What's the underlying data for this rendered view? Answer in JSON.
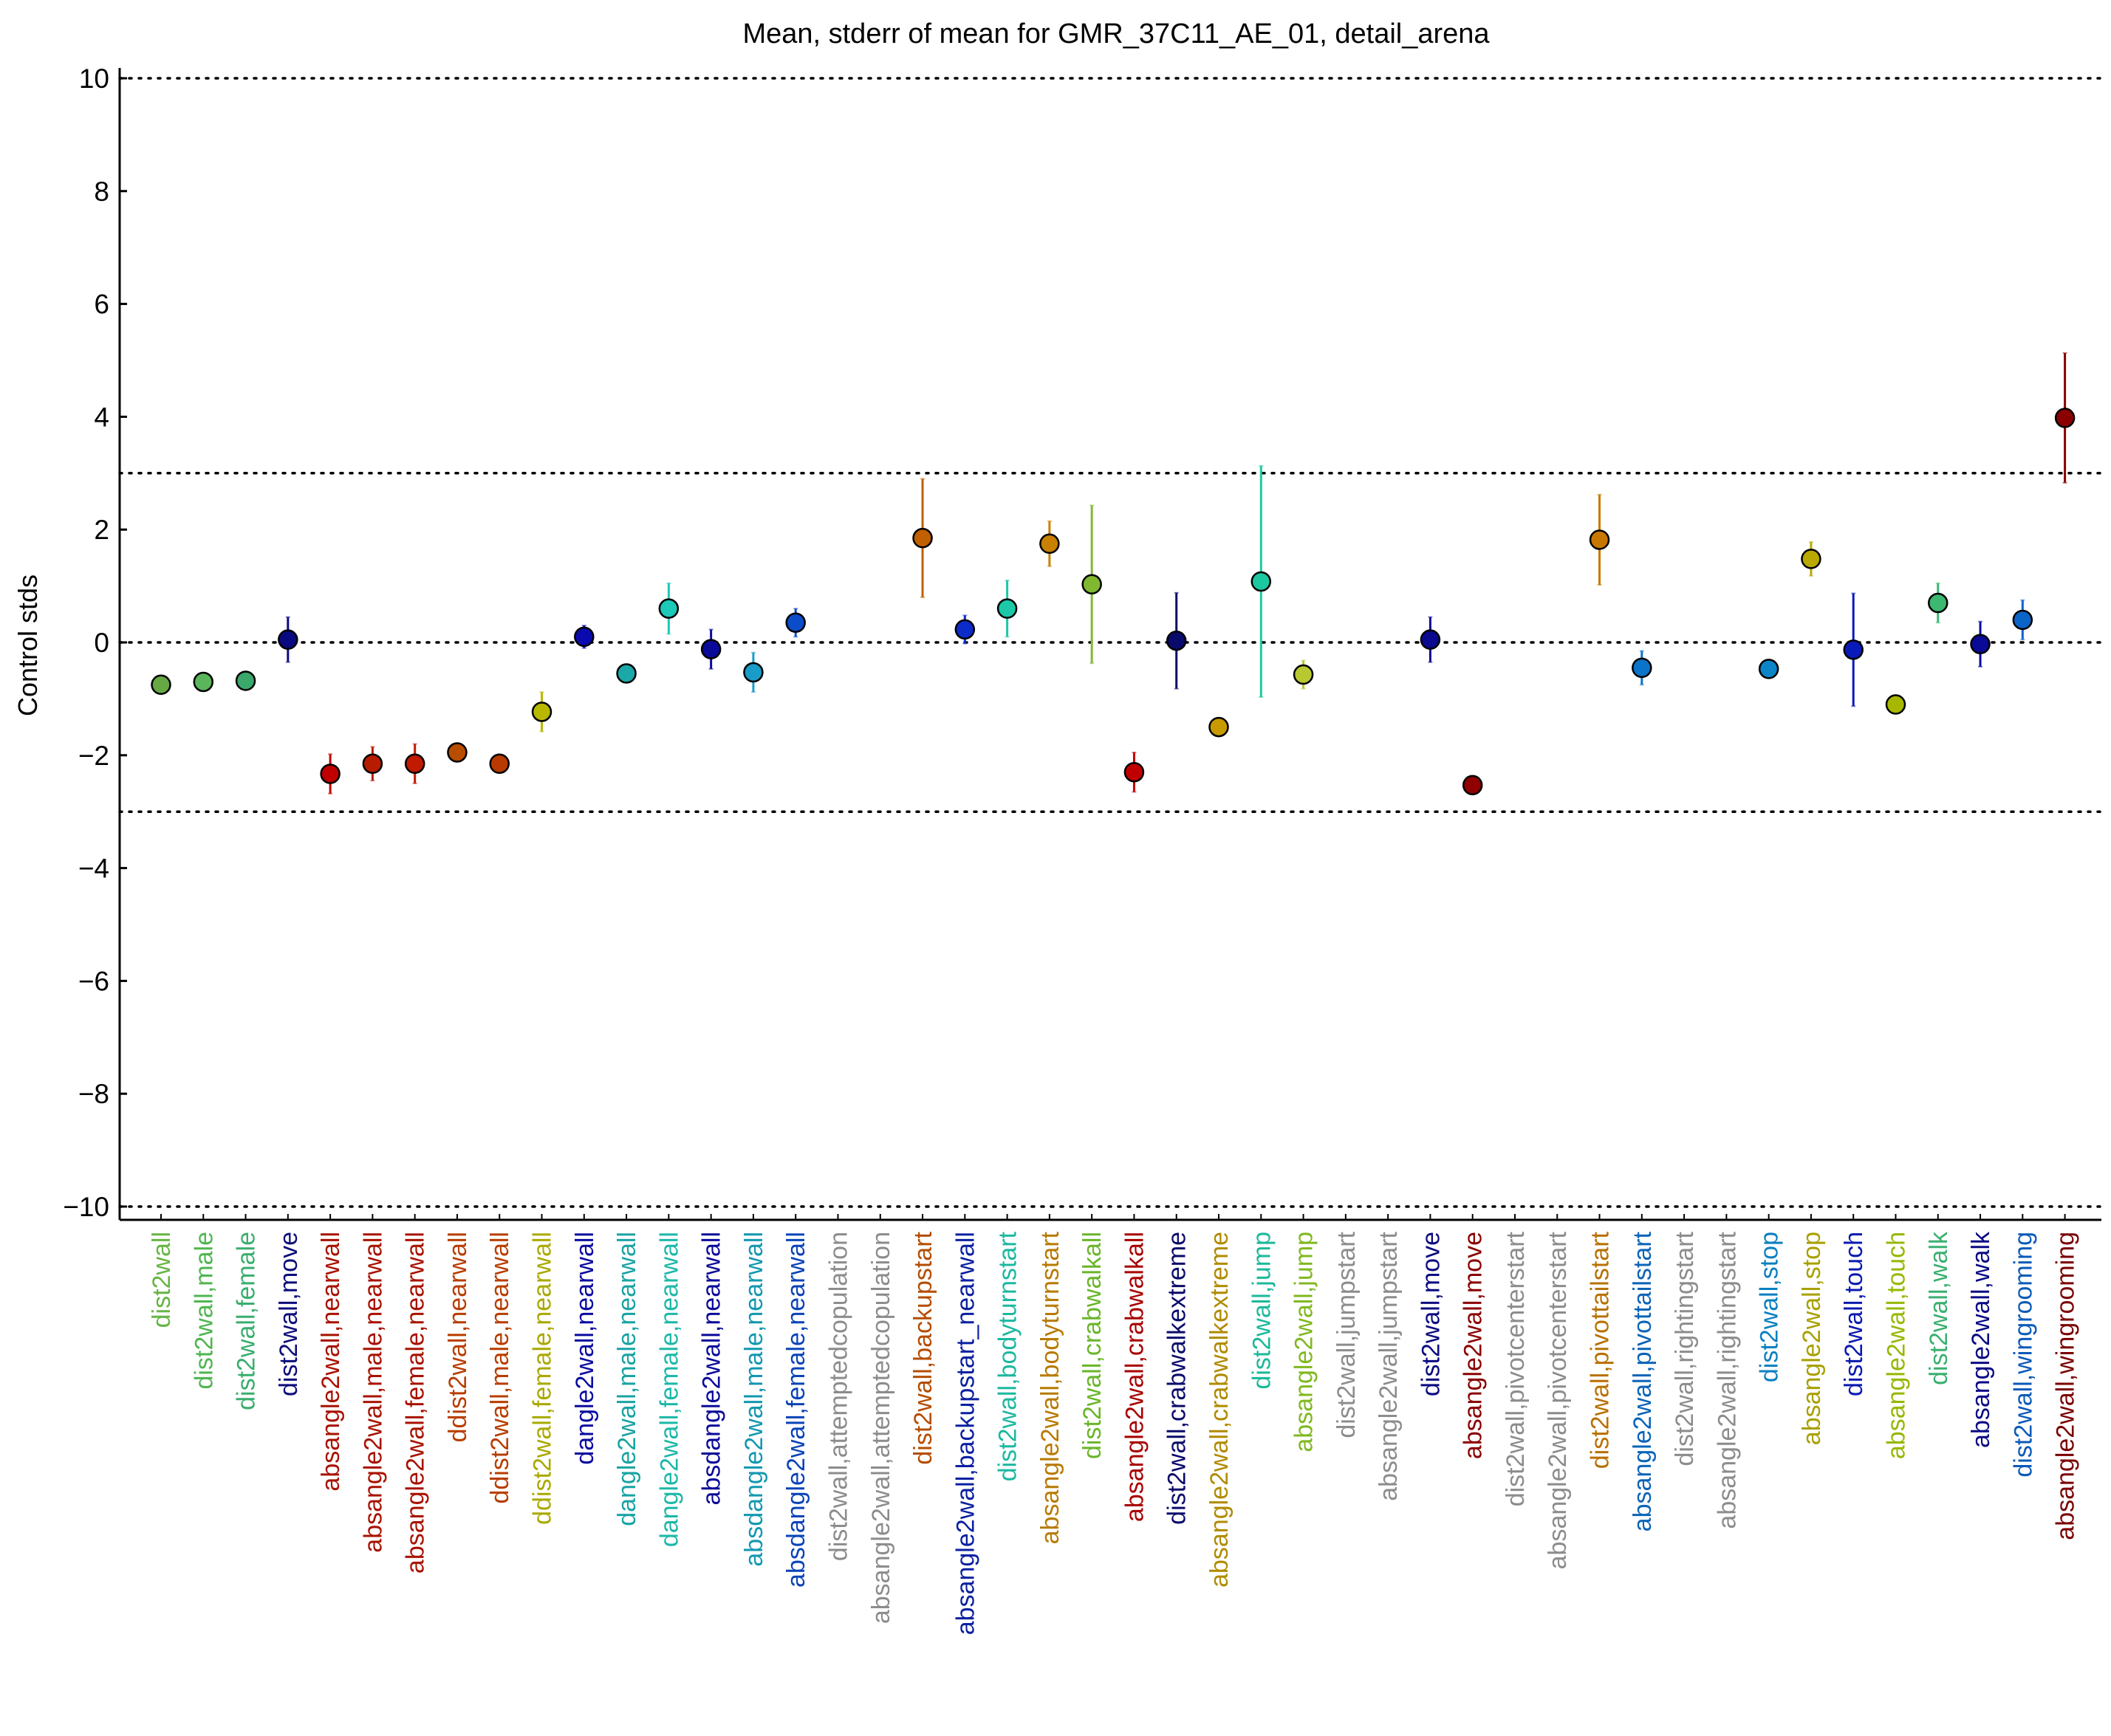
{
  "chart_data": {
    "type": "scatter",
    "title": "Mean, stderr of mean for GMR_37C11_AE_01, detail_arena",
    "xlabel": "",
    "ylabel": "Control stds",
    "ylim": [
      -10.2,
      10.2
    ],
    "yticks": [
      -10,
      -8,
      -6,
      -4,
      -2,
      0,
      2,
      4,
      6,
      8,
      10
    ],
    "ytick_labels": [
      "−10",
      "−8",
      "−6",
      "−4",
      "−2",
      "0",
      "2",
      "4",
      "6",
      "8",
      "10"
    ],
    "reference_lines": [
      -10,
      -3,
      0,
      3,
      10
    ],
    "categories": [
      "dist2wall",
      "dist2wall,male",
      "dist2wall,female",
      "dist2wall,move",
      "absangle2wall,nearwall",
      "absangle2wall,male,nearwall",
      "absangle2wall,female,nearwall",
      "ddist2wall,nearwall",
      "ddist2wall,male,nearwall",
      "ddist2wall,female,nearwall",
      "dangle2wall,nearwall",
      "dangle2wall,male,nearwall",
      "dangle2wall,female,nearwall",
      "absdangle2wall,nearwall",
      "absdangle2wall,male,nearwall",
      "absdangle2wall,female,nearwall",
      "dist2wall,attemptedcopulation",
      "absangle2wall,attemptedcopulation",
      "dist2wall,backupstart",
      "absangle2wall,backupstart_nearwall",
      "dist2wall,bodyturnstart",
      "absangle2wall,bodyturnstart",
      "dist2wall,crabwalkall",
      "absangle2wall,crabwalkall",
      "dist2wall,crabwalkextreme",
      "absangle2wall,crabwalkextreme",
      "dist2wall,jump",
      "absangle2wall,jump",
      "dist2wall,jumpstart",
      "absangle2wall,jumpstart",
      "dist2wall,move",
      "absangle2wall,move",
      "dist2wall,pivotcenterstart",
      "absangle2wall,pivotcenterstart",
      "dist2wall,pivottailstart",
      "absangle2wall,pivottailstart",
      "dist2wall,rightingstart",
      "absangle2wall,rightingstart",
      "dist2wall,stop",
      "absangle2wall,stop",
      "dist2wall,touch",
      "absangle2wall,touch",
      "dist2wall,walk",
      "absangle2wall,walk",
      "dist2wall,wingrooming",
      "absangle2wall,wingrooming"
    ],
    "series": [
      {
        "mean": [
          -0.75,
          -0.7,
          -0.68,
          0.05,
          -2.33,
          -2.15,
          -2.15,
          -1.95,
          -2.15,
          -1.23,
          0.1,
          -0.55,
          0.6,
          -0.12,
          -0.53,
          0.35,
          null,
          null,
          1.85,
          0.23,
          0.6,
          1.75,
          1.03,
          -2.3,
          0.03,
          -1.5,
          1.08,
          -0.57,
          null,
          null,
          0.05,
          -2.53,
          null,
          null,
          1.82,
          -0.45,
          null,
          null,
          -0.47,
          1.48,
          -0.13,
          -1.1,
          0.7,
          -0.03,
          0.4,
          3.98
        ],
        "stderr": [
          0.05,
          0.05,
          0.05,
          0.4,
          0.35,
          0.3,
          0.35,
          0.15,
          0.1,
          0.35,
          0.2,
          0.05,
          0.45,
          0.35,
          0.35,
          0.25,
          null,
          null,
          1.05,
          0.25,
          0.5,
          0.4,
          1.4,
          0.35,
          0.85,
          0.1,
          2.05,
          0.25,
          null,
          null,
          0.4,
          0.05,
          null,
          null,
          0.8,
          0.3,
          null,
          null,
          0.15,
          0.3,
          1.0,
          0.05,
          0.35,
          0.4,
          0.35,
          1.15
        ]
      }
    ],
    "label_colors": [
      "#66b544",
      "#4fb550",
      "#3aae6e",
      "#0c0c7a",
      "#a81200",
      "#a81200",
      "#a81200",
      "#b83d00",
      "#b83d00",
      "#aaa900",
      "#0a0aa0",
      "#1aa3a3",
      "#1cb8a8",
      "#0a0a99",
      "#1298b0",
      "#0b43b8",
      "#8c8c8c",
      "#8c8c8c",
      "#b44d00",
      "#0b20a0",
      "#1cb8a0",
      "#b87a00",
      "#6ab52a",
      "#a80000",
      "#0a0a6b",
      "#b08b00",
      "#1cb89a",
      "#80b820",
      "#8c8c8c",
      "#8c8c8c",
      "#0a0a80",
      "#8a0000",
      "#8c8c8c",
      "#8c8c8c",
      "#b87000",
      "#0b64b8",
      "#8c8c8c",
      "#8c8c8c",
      "#0a80c0",
      "#a8a000",
      "#0a1ab0",
      "#95b800",
      "#3ab070",
      "#0a0a85",
      "#0b5ab8",
      "#7a0000"
    ],
    "marker_colors": [
      "#66a844",
      "#5bb55a",
      "#3aa86a",
      "#0a0a80",
      "#c00000",
      "#b81c00",
      "#c01a00",
      "#b84d00",
      "#b83a00",
      "#b8b800",
      "#0a0ab0",
      "#1aa8a8",
      "#1cc8b8",
      "#0a0a99",
      "#1a9cc8",
      "#0b4cc8",
      "#8c8c8c",
      "#8c8c8c",
      "#c06000",
      "#0b2cc8",
      "#1cc8a8",
      "#c88000",
      "#80b830",
      "#c00000",
      "#0a0a6b",
      "#c89a00",
      "#1cc8a0",
      "#b8c830",
      "#8c8c8c",
      "#8c8c8c",
      "#0a0a90",
      "#900000",
      "#8c8c8c",
      "#8c8c8c",
      "#c87800",
      "#0b74c8",
      "#8c8c8c",
      "#8c8c8c",
      "#0b84c8",
      "#b8a800",
      "#0a1ab8",
      "#a8b800",
      "#3cb870",
      "#0a0a99",
      "#0b64c8",
      "#8a0000"
    ],
    "grid": false,
    "legend": "none"
  }
}
